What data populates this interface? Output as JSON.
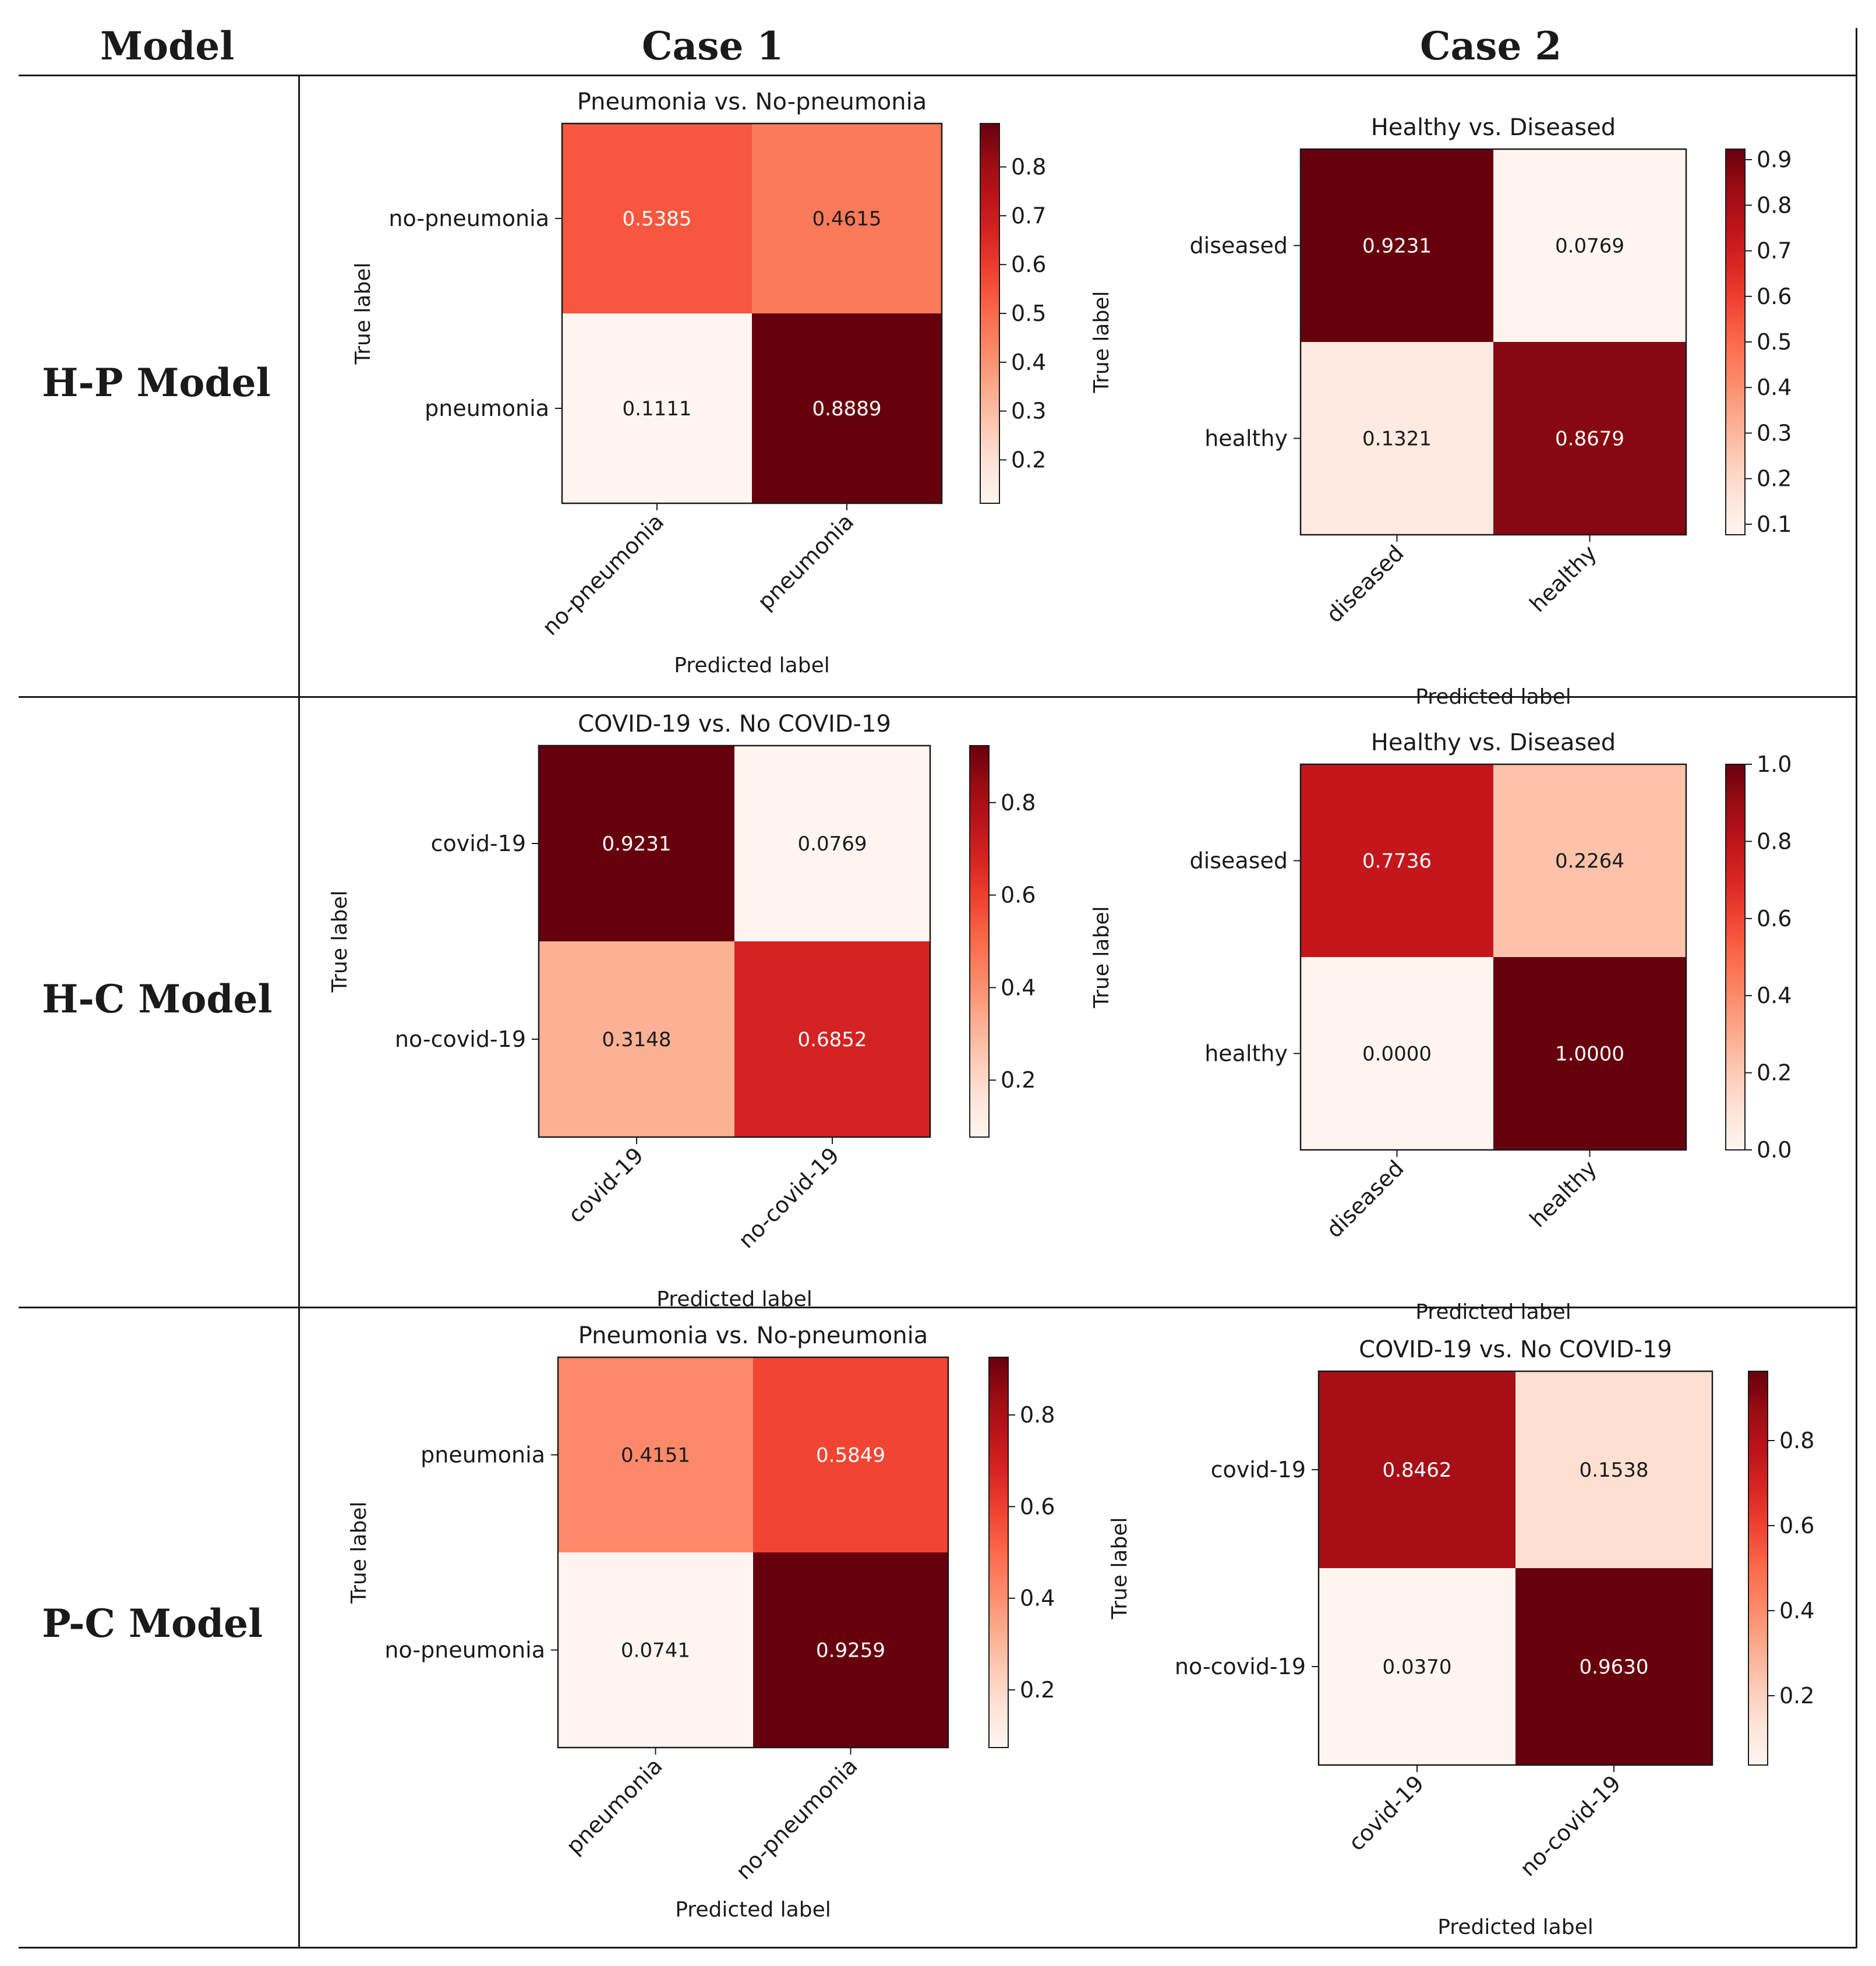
{
  "table": {
    "headers": {
      "model": "Model",
      "case1": "Case 1",
      "case2": "Case 2"
    },
    "rows": [
      {
        "label": "H-P Model"
      },
      {
        "label": "H-C Model"
      },
      {
        "label": "P-C Model"
      }
    ]
  },
  "chart_data": [
    {
      "type": "heatmap",
      "title": "Pneumonia vs. No-pneumonia",
      "xlabel": "Predicted label",
      "ylabel": "True label",
      "categories": [
        "no-pneumonia",
        "pneumonia"
      ],
      "matrix": [
        [
          0.5385,
          0.4615
        ],
        [
          0.1111,
          0.8889
        ]
      ],
      "colorbar": {
        "range": [
          0.1111,
          0.8889
        ],
        "ticks": [
          "0.2",
          "0.3",
          "0.4",
          "0.5",
          "0.6",
          "0.7",
          "0.8"
        ]
      }
    },
    {
      "type": "heatmap",
      "title": "Healthy vs. Diseased",
      "xlabel": "Predicted label",
      "ylabel": "True label",
      "categories": [
        "diseased",
        "healthy"
      ],
      "matrix": [
        [
          0.9231,
          0.0769
        ],
        [
          0.1321,
          0.8679
        ]
      ],
      "colorbar": {
        "range": [
          0.0769,
          0.9231
        ],
        "ticks": [
          "0.1",
          "0.2",
          "0.3",
          "0.4",
          "0.5",
          "0.6",
          "0.7",
          "0.8",
          "0.9"
        ]
      }
    },
    {
      "type": "heatmap",
      "title": "COVID-19 vs. No COVID-19",
      "xlabel": "Predicted label",
      "ylabel": "True label",
      "categories": [
        "covid-19",
        "no-covid-19"
      ],
      "matrix": [
        [
          0.9231,
          0.0769
        ],
        [
          0.3148,
          0.6852
        ]
      ],
      "colorbar": {
        "range": [
          0.0769,
          0.9231
        ],
        "ticks": [
          "0.2",
          "0.4",
          "0.6",
          "0.8"
        ]
      }
    },
    {
      "type": "heatmap",
      "title": "Healthy vs. Diseased",
      "xlabel": "Predicted label",
      "ylabel": "True label",
      "categories": [
        "diseased",
        "healthy"
      ],
      "matrix": [
        [
          0.7736,
          0.2264
        ],
        [
          0.0,
          1.0
        ]
      ],
      "colorbar": {
        "range": [
          0.0,
          1.0
        ],
        "ticks": [
          "0.0",
          "0.2",
          "0.4",
          "0.6",
          "0.8",
          "1.0"
        ]
      }
    },
    {
      "type": "heatmap",
      "title": "Pneumonia vs. No-pneumonia",
      "xlabel": "Predicted label",
      "ylabel": "True label",
      "categories": [
        "pneumonia",
        "no-pneumonia"
      ],
      "matrix": [
        [
          0.4151,
          0.5849
        ],
        [
          0.0741,
          0.9259
        ]
      ],
      "colorbar": {
        "range": [
          0.0741,
          0.9259
        ],
        "ticks": [
          "0.2",
          "0.4",
          "0.6",
          "0.8"
        ]
      }
    },
    {
      "type": "heatmap",
      "title": "COVID-19 vs. No COVID-19",
      "xlabel": "Predicted label",
      "ylabel": "True label",
      "categories": [
        "covid-19",
        "no-covid-19"
      ],
      "matrix": [
        [
          0.8462,
          0.1538
        ],
        [
          0.037,
          0.963
        ]
      ],
      "colorbar": {
        "range": [
          0.037,
          0.963
        ],
        "ticks": [
          "0.2",
          "0.4",
          "0.6",
          "0.8"
        ]
      }
    }
  ]
}
